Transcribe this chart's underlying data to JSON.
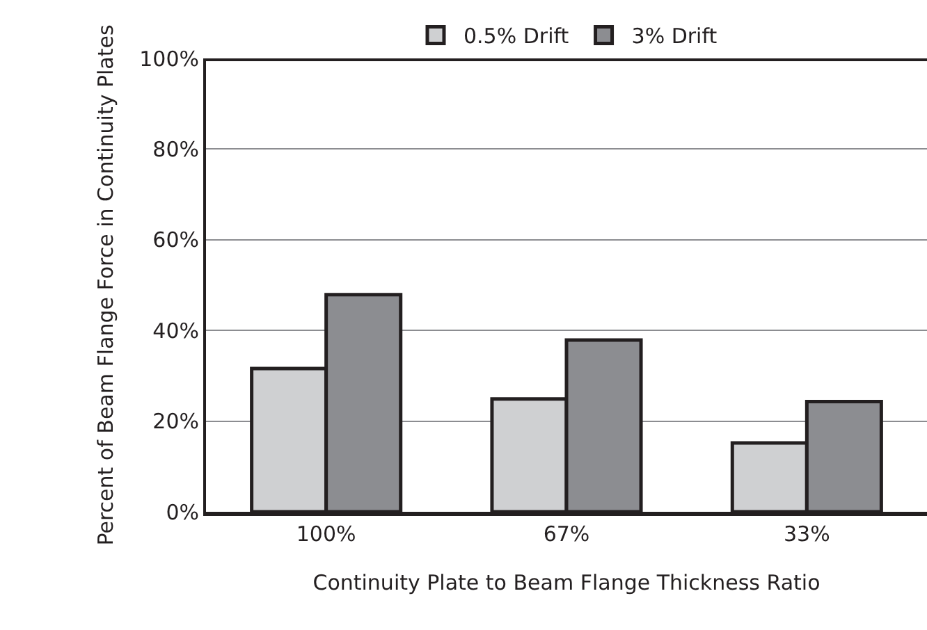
{
  "chart_data": {
    "type": "bar",
    "xlabel": "Continuity Plate to Beam Flange Thickness Ratio",
    "ylabel": "Percent of Beam Flange Force in Continuity Plates",
    "categories": [
      "100%",
      "67%",
      "33%"
    ],
    "series": [
      {
        "name": "0.5% Drift",
        "color": "#cfd0d2",
        "values": [
          31.6,
          24.9,
          15.2
        ]
      },
      {
        "name": "3% Drift",
        "color": "#8c8d91",
        "values": [
          47.9,
          37.9,
          24.3
        ]
      }
    ],
    "ylim": [
      0,
      100
    ],
    "yticks": [
      {
        "value": 0,
        "label": "0%"
      },
      {
        "value": 20,
        "label": "20%"
      },
      {
        "value": 40,
        "label": "40%"
      },
      {
        "value": 60,
        "label": "60%"
      },
      {
        "value": 80,
        "label": "80%"
      },
      {
        "value": 100,
        "label": "100%"
      }
    ],
    "grid": "y",
    "legend": "top"
  }
}
